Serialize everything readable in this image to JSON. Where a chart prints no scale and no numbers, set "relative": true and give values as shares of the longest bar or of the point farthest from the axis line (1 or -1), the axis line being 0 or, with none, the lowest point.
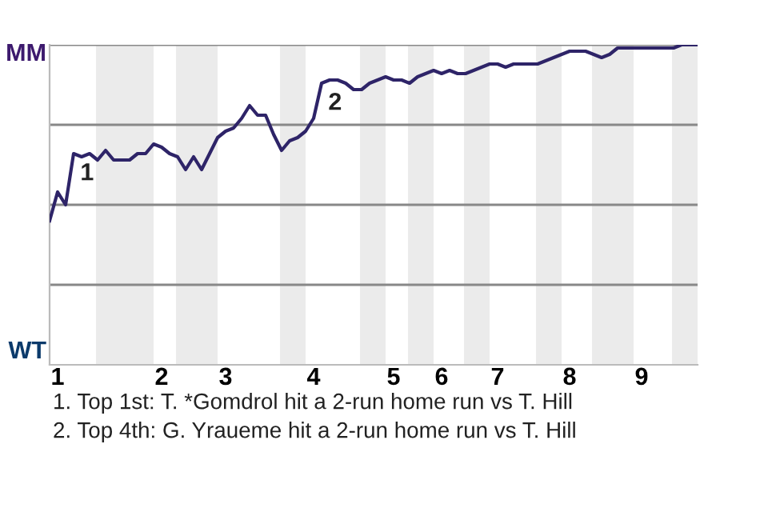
{
  "chart_data": {
    "type": "line",
    "relative": true,
    "categories": [
      null,
      "1",
      null,
      null,
      null,
      null,
      null,
      null,
      null,
      null,
      null,
      null,
      null,
      null,
      "2",
      null,
      null,
      null,
      null,
      null,
      null,
      null,
      "3",
      null,
      null,
      null,
      null,
      null,
      null,
      null,
      null,
      null,
      null,
      "4",
      null,
      null,
      null,
      null,
      null,
      null,
      null,
      null,
      null,
      "5",
      null,
      null,
      null,
      null,
      null,
      "6",
      null,
      null,
      null,
      null,
      null,
      null,
      "7",
      null,
      null,
      null,
      null,
      null,
      null,
      null,
      null,
      "8",
      null,
      null,
      null,
      null,
      null,
      null,
      null,
      null,
      "9",
      null,
      null,
      null,
      null,
      null,
      null,
      null
    ],
    "series": [
      {
        "color": "#2e2468",
        "values": [
          0.45,
          0.54,
          0.5,
          0.66,
          0.65,
          0.66,
          0.64,
          0.67,
          0.64,
          0.64,
          0.64,
          0.66,
          0.66,
          0.69,
          0.68,
          0.66,
          0.65,
          0.61,
          0.65,
          0.61,
          0.66,
          0.71,
          0.73,
          0.74,
          0.77,
          0.81,
          0.78,
          0.78,
          0.72,
          0.67,
          0.7,
          0.71,
          0.73,
          0.77,
          0.88,
          0.89,
          0.89,
          0.88,
          0.86,
          0.86,
          0.88,
          0.89,
          0.9,
          0.89,
          0.89,
          0.88,
          0.9,
          0.91,
          0.92,
          0.91,
          0.92,
          0.91,
          0.91,
          0.92,
          0.93,
          0.94,
          0.94,
          0.93,
          0.94,
          0.94,
          0.94,
          0.94,
          0.95,
          0.96,
          0.97,
          0.98,
          0.98,
          0.98,
          0.97,
          0.96,
          0.97,
          0.99,
          0.99,
          0.99,
          0.99,
          0.99,
          0.99,
          0.99,
          0.99,
          1.0,
          1.0,
          1.0
        ]
      }
    ],
    "grid": "y",
    "marker": "none",
    "line_style": "solid",
    "legend": false,
    "annotations": [
      {
        "text": "1",
        "y": 0.66
      },
      {
        "text": "2",
        "y": 0.88
      },
      "MM",
      "WT",
      "1. Top 1st: T. *Gomdrol hit a 2-run home run vs T. Hill",
      "2. Top 4th: G. Yraueme hit a 2-run home run vs T. Hill"
    ]
  }
}
